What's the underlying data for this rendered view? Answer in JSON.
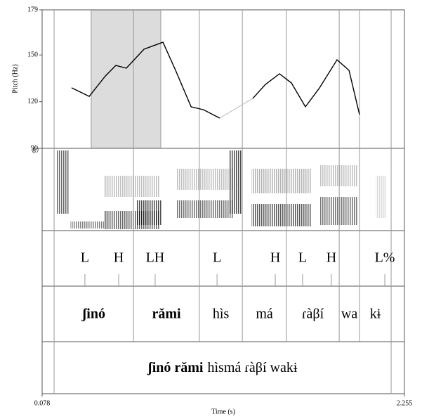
{
  "chart_data": {
    "type": "line",
    "ylabel": "Pitch (Hz)",
    "xlabel": "Time (s)",
    "xlim": [
      0.078,
      2.255
    ],
    "xticks": [
      0.078,
      2.255
    ],
    "ylim": [
      90,
      179
    ],
    "yticks": [
      90,
      120,
      150,
      179
    ],
    "spectrogram_label": "87",
    "highlight": [
      0.373,
      0.791
    ],
    "x": [
      0.255,
      0.361,
      0.458,
      0.521,
      0.584,
      0.69,
      0.804,
      0.88,
      0.973,
      1.048,
      1.145,
      null,
      1.344,
      1.42,
      1.504,
      1.576,
      1.66,
      1.745,
      1.85,
      1.922,
      1.985
    ],
    "series": [
      {
        "color": "#000000",
        "values": [
          128.9,
          123.4,
          136.5,
          143.3,
          141.5,
          153.7,
          158.2,
          140.1,
          116.7,
          114.8,
          109.4,
          null,
          122.1,
          131.1,
          137.9,
          132.0,
          116.7,
          128.9,
          146.9,
          140.1,
          111.7
        ]
      }
    ],
    "tones": {
      "labels": [
        "L",
        "H",
        "LH",
        "L",
        "H",
        "L",
        "H",
        "L%"
      ],
      "times": [
        0.335,
        0.538,
        0.757,
        1.129,
        1.479,
        1.643,
        1.816,
        2.137
      ]
    },
    "words": {
      "labels": [
        "ʃinó",
        "rǎmi",
        "hìs",
        "má",
        "ɾàβí",
        "wa",
        "kɨ"
      ],
      "bold": [
        true,
        true,
        false,
        false,
        false,
        false,
        false
      ],
      "bounds": [
        0.15,
        0.627,
        1.023,
        1.281,
        1.546,
        1.863,
        1.985,
        2.175
      ]
    },
    "sentence": {
      "bold_text": "ʃinó rǎmi",
      "text": "hìsmá ɾàβí wakɨ",
      "bounds": [
        0.15,
        2.175
      ]
    }
  }
}
